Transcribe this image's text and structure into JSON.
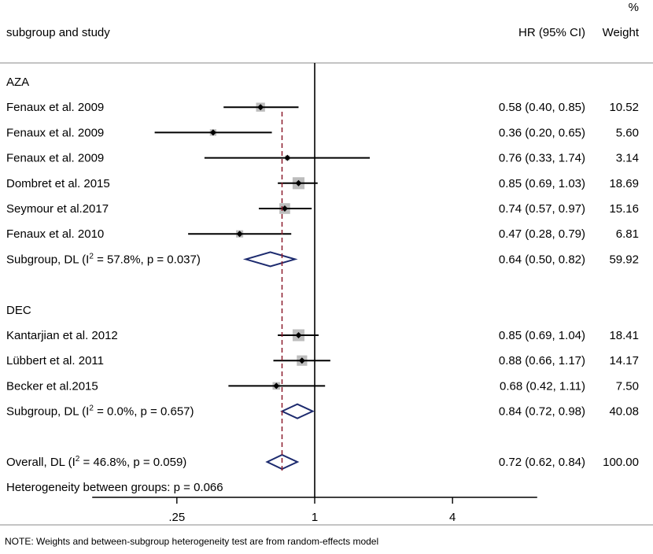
{
  "header": {
    "study_col": "subgroup and study",
    "hr_col": "HR (95% CI)",
    "weight_col_line1": "%",
    "weight_col_line2": "Weight"
  },
  "note": "NOTE: Weights and between-subgroup heterogeneity test are from random-effects model",
  "chart_data": {
    "type": "forest",
    "scale": "log",
    "xlim": [
      0.125,
      8
    ],
    "ticks": [
      {
        "value": 0.25,
        "label": ".25"
      },
      {
        "value": 1,
        "label": "1"
      },
      {
        "value": 4,
        "label": "4"
      }
    ],
    "null_line": 1,
    "overall_line": 0.72,
    "rows": [
      {
        "type": "group",
        "label": "AZA"
      },
      {
        "type": "study",
        "label": "Fenaux et al. 2009",
        "hr": 0.58,
        "lo": 0.4,
        "hi": 0.85,
        "hr_text": "0.58 (0.40, 0.85)",
        "weight": 10.52,
        "weight_text": "10.52"
      },
      {
        "type": "study",
        "label": "Fenaux et al. 2009",
        "hr": 0.36,
        "lo": 0.2,
        "hi": 0.65,
        "hr_text": "0.36 (0.20, 0.65)",
        "weight": 5.6,
        "weight_text": "5.60"
      },
      {
        "type": "study",
        "label": "Fenaux et al. 2009",
        "hr": 0.76,
        "lo": 0.33,
        "hi": 1.74,
        "hr_text": "0.76 (0.33, 1.74)",
        "weight": 3.14,
        "weight_text": "3.14"
      },
      {
        "type": "study",
        "label": "Dombret et al. 2015",
        "hr": 0.85,
        "lo": 0.69,
        "hi": 1.03,
        "hr_text": "0.85 (0.69, 1.03)",
        "weight": 18.69,
        "weight_text": "18.69"
      },
      {
        "type": "study",
        "label": "Seymour et al.2017",
        "hr": 0.74,
        "lo": 0.57,
        "hi": 0.97,
        "hr_text": "0.74 (0.57, 0.97)",
        "weight": 15.16,
        "weight_text": "15.16"
      },
      {
        "type": "study",
        "label": "Fenaux et al. 2010",
        "hr": 0.47,
        "lo": 0.28,
        "hi": 0.79,
        "hr_text": "0.47 (0.28, 0.79)",
        "weight": 6.81,
        "weight_text": "6.81"
      },
      {
        "type": "subgroup",
        "label_pre": "Subgroup, DL (I",
        "label_sup": "2",
        "label_post": " = 57.8%, p = 0.037)",
        "hr": 0.64,
        "lo": 0.5,
        "hi": 0.82,
        "hr_text": "0.64 (0.50, 0.82)",
        "weight_text": "59.92"
      },
      {
        "type": "blank"
      },
      {
        "type": "group",
        "label": "DEC"
      },
      {
        "type": "study",
        "label": "Kantarjian et al. 2012",
        "hr": 0.85,
        "lo": 0.69,
        "hi": 1.04,
        "hr_text": "0.85 (0.69, 1.04)",
        "weight": 18.41,
        "weight_text": "18.41"
      },
      {
        "type": "study",
        "label": "Lübbert et al. 2011",
        "hr": 0.88,
        "lo": 0.66,
        "hi": 1.17,
        "hr_text": "0.88 (0.66, 1.17)",
        "weight": 14.17,
        "weight_text": "14.17"
      },
      {
        "type": "study",
        "label": "Becker et al.2015",
        "hr": 0.68,
        "lo": 0.42,
        "hi": 1.11,
        "hr_text": "0.68 (0.42, 1.11)",
        "weight": 7.5,
        "weight_text": "7.50"
      },
      {
        "type": "subgroup",
        "label_pre": "Subgroup, DL (I",
        "label_sup": "2",
        "label_post": " = 0.0%, p = 0.657)",
        "hr": 0.84,
        "lo": 0.72,
        "hi": 0.98,
        "hr_text": "0.84 (0.72, 0.98)",
        "weight_text": "40.08"
      },
      {
        "type": "blank"
      },
      {
        "type": "overall",
        "label_pre": "Overall, DL (I",
        "label_sup": "2",
        "label_post": " = 46.8%, p = 0.059)",
        "hr": 0.72,
        "lo": 0.62,
        "hi": 0.84,
        "hr_text": "0.72 (0.62, 0.84)",
        "weight_text": "100.00"
      },
      {
        "type": "text",
        "label": "Heterogeneity between groups: p = 0.066"
      }
    ],
    "colors": {
      "ci_line": "#000000",
      "weight_box": "#bdbdbd",
      "point": "#000000",
      "diamond": "#1c2a6e",
      "overall_line": "#8b1a2b",
      "axis": "#000000",
      "divider": "#8a8a8a"
    }
  }
}
